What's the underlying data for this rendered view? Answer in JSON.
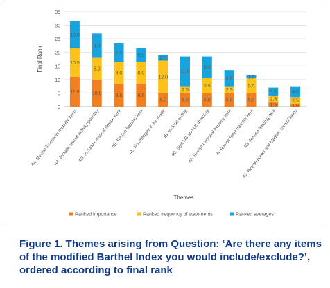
{
  "chart_data": {
    "type": "bar",
    "stacked": true,
    "title": "",
    "xlabel": "Themes",
    "ylabel": "Final Rank",
    "ylim": [
      0,
      35
    ],
    "yticks": [
      0,
      5,
      10,
      15,
      20,
      25,
      30,
      35
    ],
    "grid": true,
    "legend_position": "bottom",
    "categories": [
      "4H. Revise functional mobility items",
      "4A. Include sexual activity possibly",
      "4D. Include personal device care",
      "4E. Revise bathing item",
      "4L. No changes to be made",
      "4B. Include eating",
      "4C. Split UB and LB dressing",
      "4F. Revise personal hygiene item",
      "4I. Revise toilet transfer item",
      "4G. Revise feeding item",
      "4J. Revise bowel and bladder control items"
    ],
    "series": [
      {
        "name": "Ranked importance",
        "color": "#f07f22",
        "values": [
          11.0,
          10.0,
          8.5,
          8.5,
          5.0,
          5.0,
          5.0,
          5.0,
          5.0,
          1.5,
          1.0
        ],
        "labels": [
          "11.0",
          "10.0",
          "8.5",
          "8.5",
          "5.0",
          "5.0",
          "5.0",
          "5.0",
          "5.0",
          "1.5",
          "1.0"
        ]
      },
      {
        "name": "Ranked frequency of statements",
        "color": "#fcc21a",
        "values": [
          10.5,
          8.0,
          8.0,
          8.0,
          12.0,
          2.5,
          5.5,
          2.5,
          5.5,
          2.5,
          2.5
        ],
        "labels": [
          "10.5",
          "8.0",
          "8.0",
          "8.0",
          "12.0",
          "2.5",
          "5.5",
          "2.5",
          "5.5",
          "2.5",
          "2.5"
        ]
      },
      {
        "name": "Ranked averages",
        "color": "#17a3dc",
        "values": [
          10.0,
          9.0,
          7.0,
          5.0,
          2.0,
          11.0,
          8.0,
          6.0,
          1.0,
          3.0,
          4.0
        ],
        "labels": [
          "10.0",
          "9.0",
          "7.0",
          "5.0",
          "2.0",
          "11.0",
          "8.0",
          "6.0",
          "1.0",
          "3.0",
          "4.0"
        ]
      }
    ]
  },
  "caption": "Figure 1. Themes arising from Question: ‘Are there any items of the modified Barthel Index you would include/exclude?’, ordered according to final rank"
}
